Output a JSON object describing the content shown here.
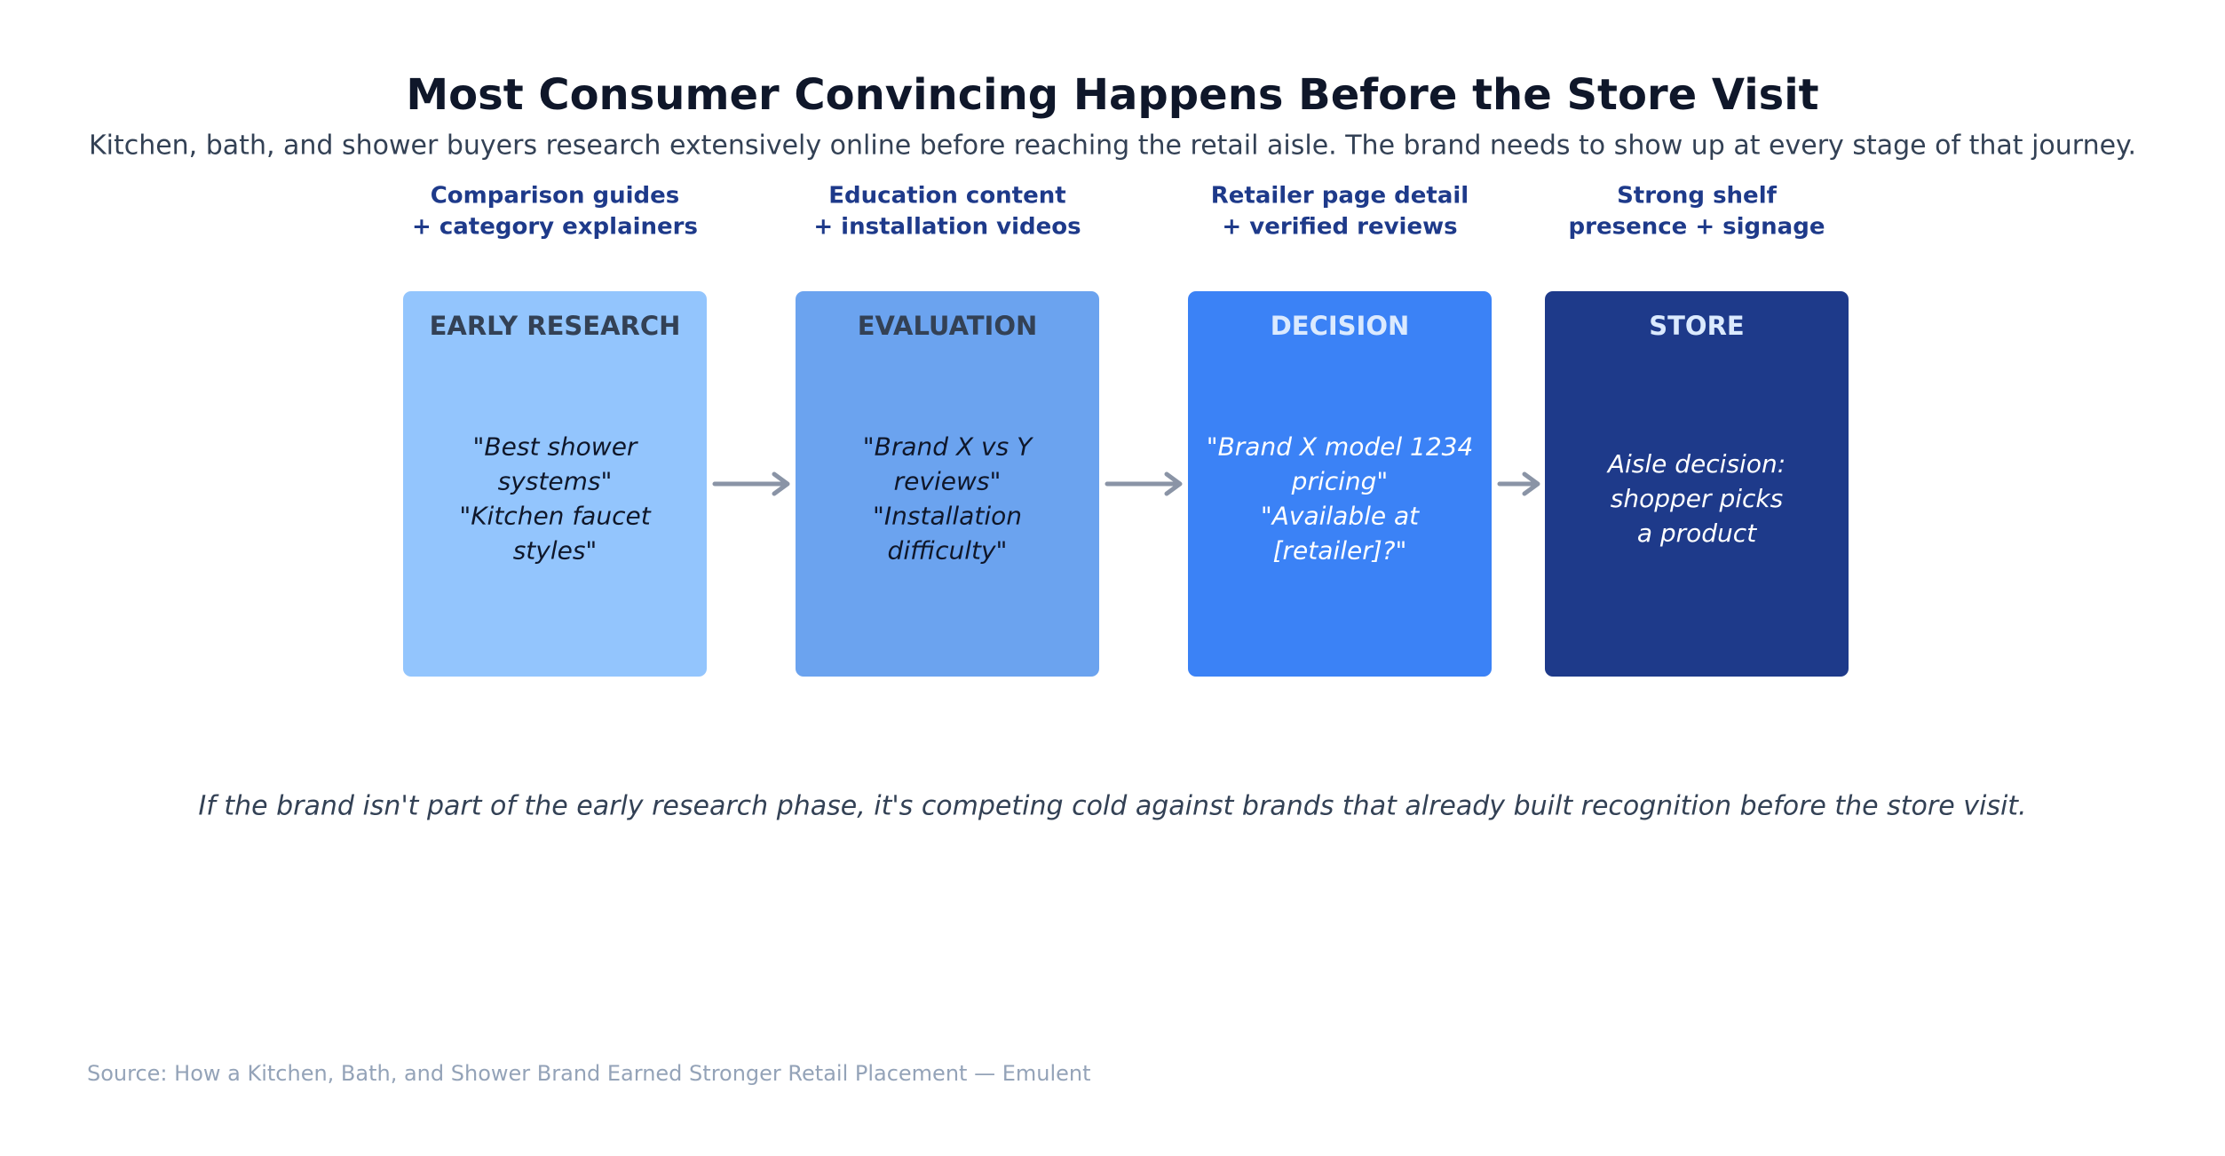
{
  "header": {
    "title": "Most Consumer Convincing Happens Before the Store Visit",
    "subtitle": "Kitchen, bath, and shower buyers research extensively online before reaching the retail aisle. The brand needs to show up at every stage of that journey."
  },
  "stages": [
    {
      "tactic": [
        "Comparison guides",
        "+ category explainers"
      ],
      "name": "EARLY RESEARCH",
      "body": [
        "\"Best shower",
        "systems\"",
        "\"Kitchen faucet",
        "styles\""
      ]
    },
    {
      "tactic": [
        "Education content",
        "+ installation videos"
      ],
      "name": "EVALUATION",
      "body": [
        "\"Brand X vs Y",
        "reviews\"",
        "\"Installation",
        "difficulty\""
      ]
    },
    {
      "tactic": [
        "Retailer page detail",
        "+ verified reviews"
      ],
      "name": "DECISION",
      "body": [
        "\"Brand X model 1234",
        "pricing\"",
        "\"Available at",
        "[retailer]?\""
      ]
    },
    {
      "tactic": [
        "Strong shelf",
        "presence + signage"
      ],
      "name": "STORE",
      "body": [
        "Aisle decision:",
        "shopper picks",
        "a product"
      ]
    }
  ],
  "footnote": "If the brand isn't part of the early research phase, it's competing cold against brands that already built recognition before the store visit.",
  "source": "Source: How a Kitchen, Bath, and Shower Brand Earned Stronger Retail Placement — Emulent"
}
